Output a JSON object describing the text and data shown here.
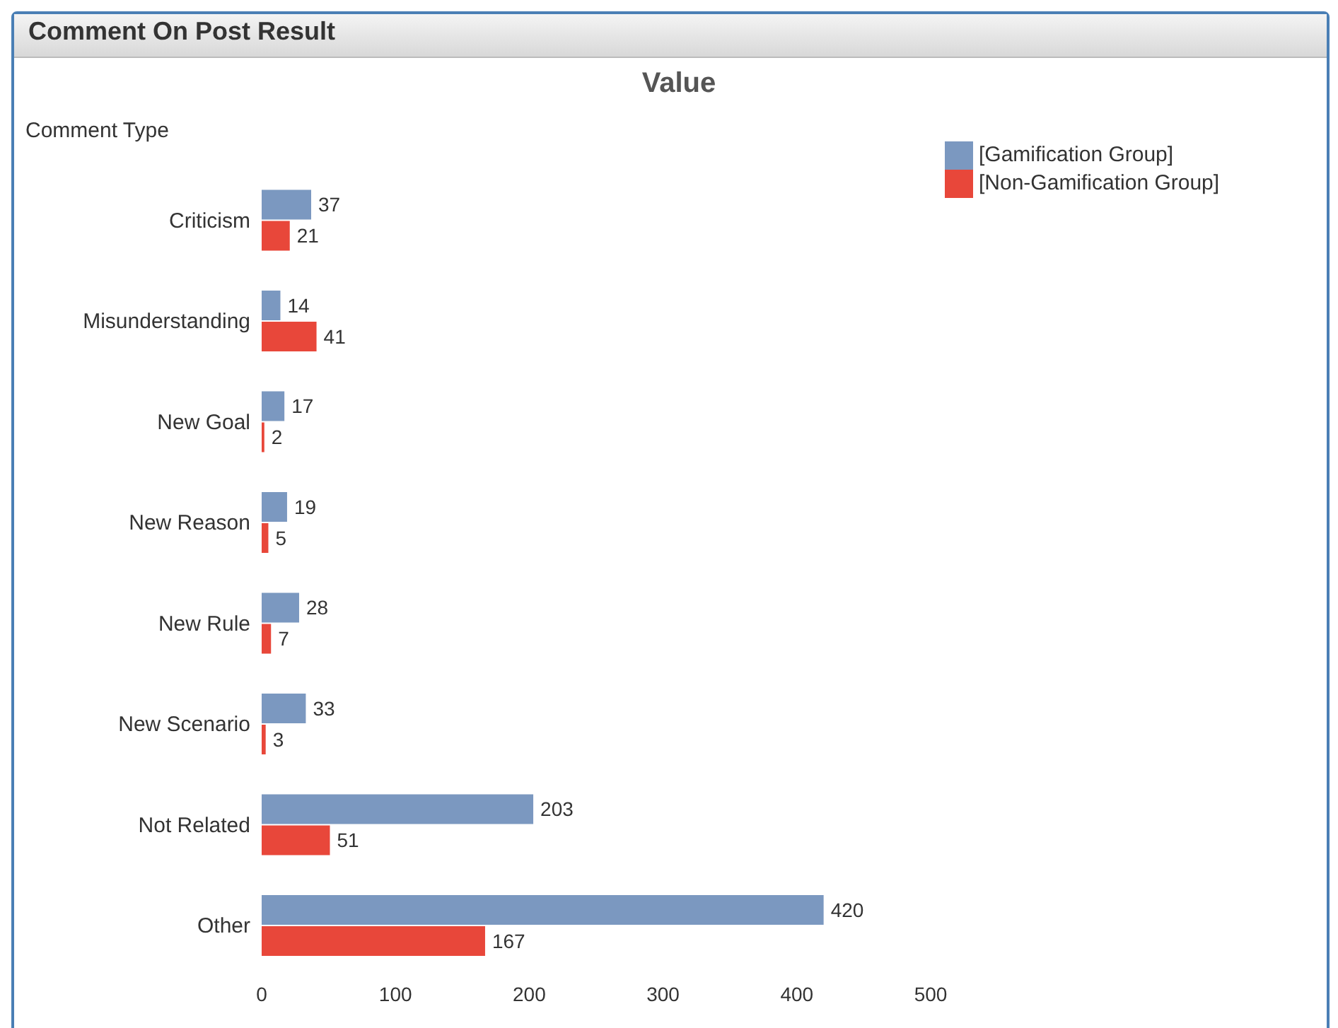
{
  "chart_data": {
    "type": "bar",
    "orientation": "horizontal",
    "title": "Comment On Post Result",
    "subtitle": "Value",
    "ylabel": "Comment Type",
    "categories": [
      "Criticism",
      "Misunderstanding",
      "New Goal",
      "New Reason",
      "New Rule",
      "New Scenario",
      "Not Related",
      "Other"
    ],
    "series": [
      {
        "name": "[Gamification Group]",
        "color": "#7b98c0",
        "values": [
          37,
          14,
          17,
          19,
          28,
          33,
          203,
          420
        ]
      },
      {
        "name": "[Non-Gamification Group]",
        "color": "#e8473a",
        "values": [
          21,
          41,
          2,
          5,
          7,
          3,
          51,
          167
        ]
      }
    ],
    "xlim": [
      0,
      500
    ],
    "xticks": [
      0,
      100,
      200,
      300,
      400,
      500
    ],
    "data_labels": true,
    "legend": "top right",
    "grid": false
  }
}
